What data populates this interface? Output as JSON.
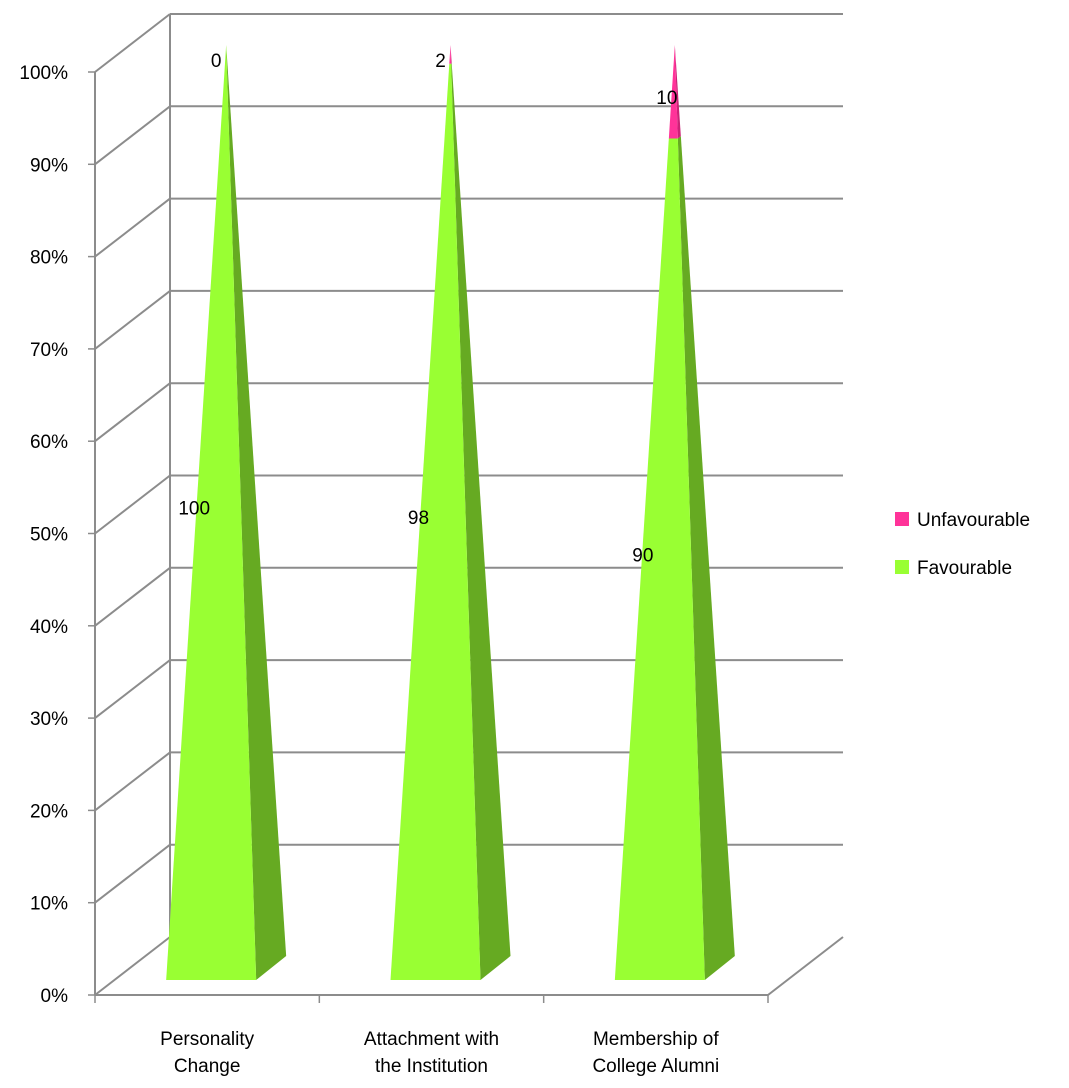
{
  "chart_data": {
    "type": "bar",
    "subtype": "stacked-percent-3d-pyramid",
    "categories": [
      [
        "Personality",
        "Change"
      ],
      [
        "Attachment with",
        "the Institution"
      ],
      [
        "Membership of",
        "College Alumni"
      ]
    ],
    "series": [
      {
        "name": "Favourable",
        "values": [
          100,
          98,
          90
        ],
        "color": "#99FF33",
        "side_color": "#66AA22"
      },
      {
        "name": "Unfavourable",
        "values": [
          0,
          2,
          10
        ],
        "color": "#FF3399",
        "side_color": "#CC2277"
      }
    ],
    "y_ticks": [
      "0%",
      "10%",
      "20%",
      "30%",
      "40%",
      "50%",
      "60%",
      "70%",
      "80%",
      "90%",
      "100%"
    ],
    "ylim": [
      0,
      100
    ],
    "grid": true,
    "legend_position": "right",
    "legend_order": [
      "Unfavourable",
      "Favourable"
    ],
    "title": "",
    "xlabel": "",
    "ylabel": ""
  }
}
